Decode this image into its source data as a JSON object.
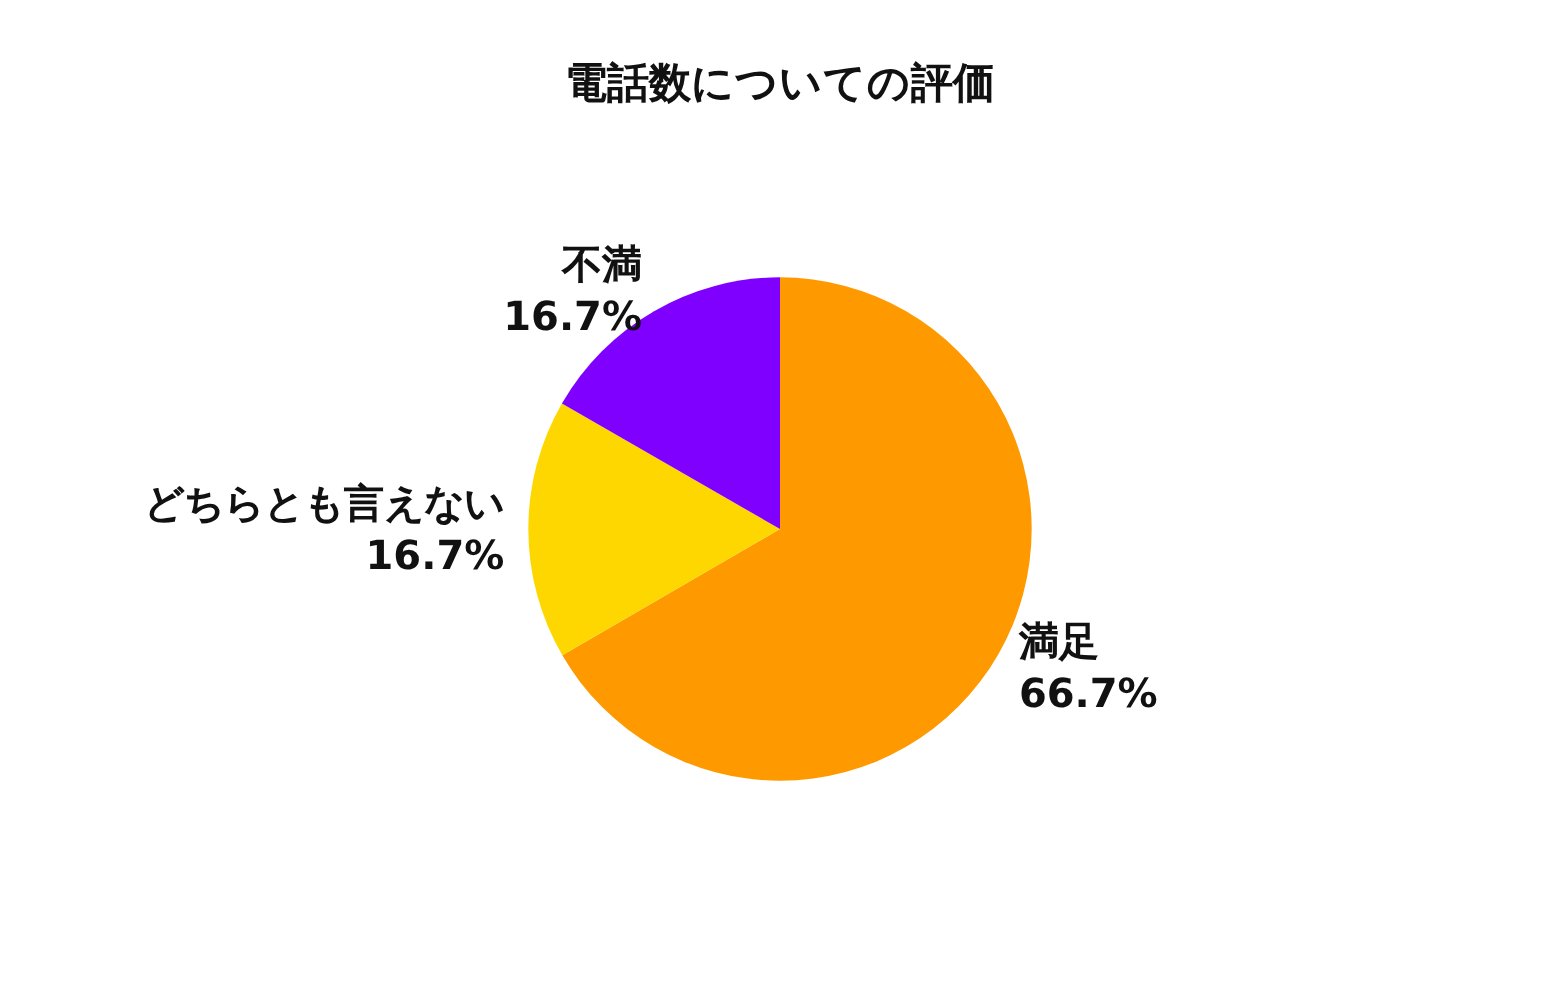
{
  "chart_data": {
    "type": "pie",
    "title": "電話数についての評価",
    "categories": [
      "満足",
      "どちらとも言えない",
      "不満"
    ],
    "values": [
      66.7,
      16.7,
      16.7
    ],
    "value_labels": [
      "66.7%",
      "16.7%",
      "16.7%"
    ],
    "colors": [
      "#ff9900",
      "#ffd700",
      "#7f00ff"
    ],
    "legend": false
  }
}
